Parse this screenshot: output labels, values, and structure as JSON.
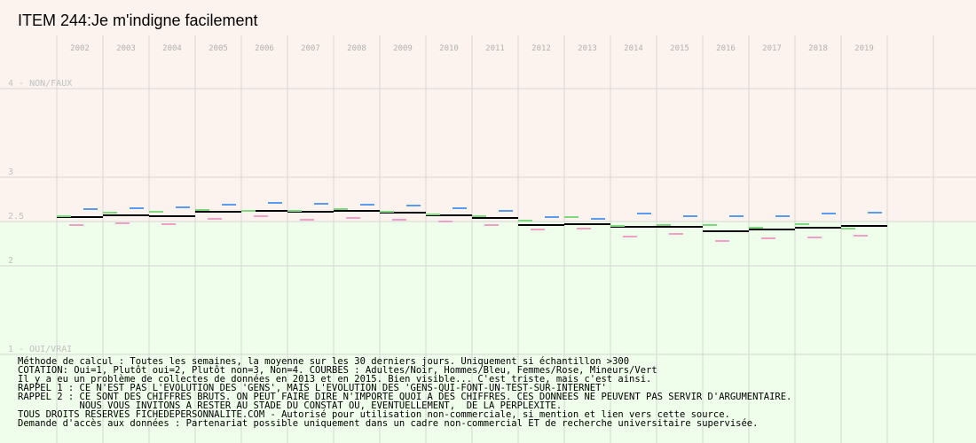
{
  "chart_data": {
    "type": "line",
    "title": "ITEM 244:Je m'indigne facilement",
    "x": [
      "2002",
      "2003",
      "2004",
      "2005",
      "2006",
      "2007",
      "2008",
      "2009",
      "2010",
      "2011",
      "2012",
      "2013",
      "2014",
      "2015",
      "2016",
      "2017",
      "2018",
      "2019"
    ],
    "ylim": [
      1,
      4.5
    ],
    "y_ticks": [
      {
        "value": 4,
        "label": "4 - NON/FAUX"
      },
      {
        "value": 3,
        "label": "3"
      },
      {
        "value": 2.5,
        "label": "2.5"
      },
      {
        "value": 2,
        "label": "2"
      },
      {
        "value": 1,
        "label": "1 - OUI/VRAI"
      }
    ],
    "grid": true,
    "series": [
      {
        "name": "Adultes",
        "color": "#000000",
        "values": [
          2.55,
          2.57,
          2.56,
          2.61,
          2.62,
          2.61,
          2.62,
          2.6,
          2.57,
          2.54,
          2.46,
          2.47,
          2.44,
          2.44,
          2.39,
          2.41,
          2.43,
          2.45
        ]
      },
      {
        "name": "Hommes",
        "color": "#5b9bef",
        "values": [
          2.64,
          2.65,
          2.66,
          2.69,
          2.71,
          2.7,
          2.69,
          2.68,
          2.65,
          2.62,
          2.55,
          2.53,
          2.59,
          2.56,
          2.56,
          2.56,
          2.59,
          2.6
        ]
      },
      {
        "name": "Femmes",
        "color": "#f0a0c8",
        "values": [
          2.46,
          2.48,
          2.47,
          2.53,
          2.56,
          2.52,
          2.54,
          2.52,
          2.5,
          2.46,
          2.41,
          2.42,
          2.33,
          2.36,
          2.28,
          2.31,
          2.32,
          2.34
        ]
      },
      {
        "name": "Mineurs",
        "color": "#7ed87e",
        "values": [
          2.56,
          2.6,
          2.61,
          2.63,
          2.62,
          2.62,
          2.64,
          2.61,
          2.58,
          2.56,
          2.51,
          2.55,
          2.45,
          2.46,
          2.46,
          2.43,
          2.47,
          2.42
        ]
      }
    ]
  },
  "colors": {
    "band_top": "#fdf3ee",
    "band_bottom": "#eefeea",
    "grid": "#d7d7d7"
  },
  "notes": [
    "Méthode de calcul : Toutes les semaines, la moyenne sur les 30 derniers jours. Uniquement si échantillon >300",
    "COTATION: Oui=1, Plutôt oui=2, Plutôt non=3, Non=4. COURBES : Adultes/Noir, Hommes/Bleu, Femmes/Rose, Mineurs/Vert",
    "Il y a eu un problème de collectes de données en 2013 et en 2015. Bien visible... C'est triste, mais c'est ainsi.",
    "RAPPEL 1 : CE N'EST PAS L'EVOLUTION DES 'GENS', MAIS L'EVOLUTION DES 'GENS-QUI-FONT-UN-TEST-SUR-INTERNET'",
    "RAPPEL 2 : CE SONT DES CHIFFRES BRUTS. ON PEUT FAIRE DIRE N'IMPORTE QUOI A DES CHIFFRES. CES DONNEES NE PEUVENT PAS SERVIR D'ARGUMENTAIRE.",
    "           NOUS VOUS INVITONS A RESTER AU STADE DU CONSTAT OU, EVENTUELLEMENT,  DE LA PERPLEXITE.",
    "TOUS DROITS RESERVES FICHEDEPERSONNALITE.COM - Autorisé pour utilisation non-commerciale, si mention et lien vers cette source.",
    "Demande d'accès aux données : Partenariat possible uniquement dans un cadre non-commercial ET de recherche universitaire supervisée."
  ]
}
